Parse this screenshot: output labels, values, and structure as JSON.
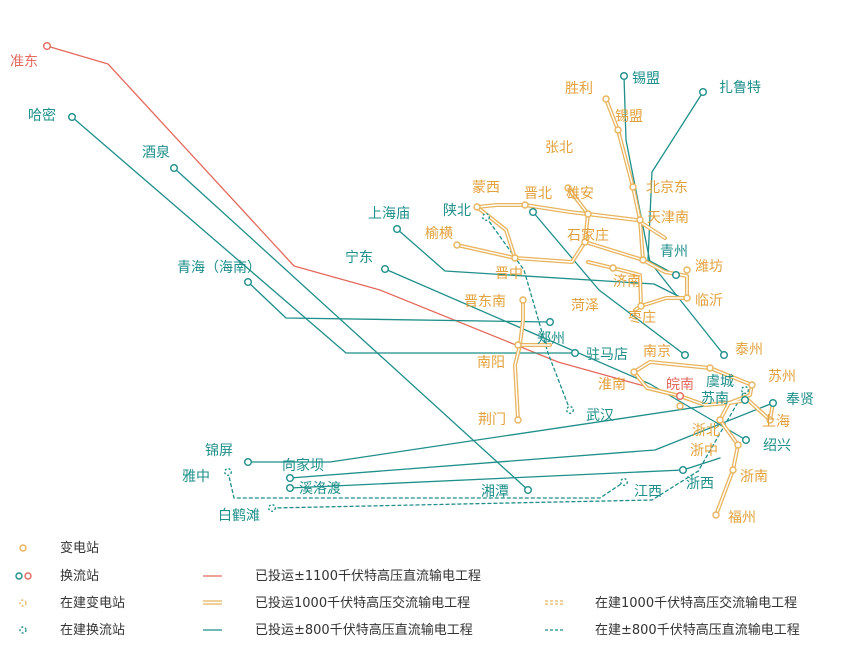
{
  "colors": {
    "teal": "#1f8f8a",
    "gold": "#e8b45e",
    "gold_label": "#e3a13d",
    "red": "#e46a5d",
    "text": "#333333"
  },
  "places": {
    "zhundong": "准东",
    "hami": "哈密",
    "jiuquan": "酒泉",
    "qinghai": "青海（海南）",
    "ningdong": "宁东",
    "shanghaimiao": "上海庙",
    "shanbei": "陕北",
    "mengxi": "蒙西",
    "jinbei": "晋北",
    "xiongan": "雄安",
    "zhangbei": "张北",
    "yuheng": "榆横",
    "shijiazhuang": "石家庄",
    "jinzhong": "晋中",
    "jindongnan": "晋东南",
    "zhengzhou": "郑州",
    "zhumadian": "驻马店",
    "nanyang": "南阳",
    "jingmen": "荆门",
    "wuhan": "武汉",
    "shengli": "胜利",
    "ximeng_dc": "锡盟",
    "ximeng_ac": "锡盟",
    "zhalute": "扎鲁特",
    "beijingdong": "北京东",
    "tianjinnan": "天津南",
    "qingzhou": "青州",
    "jinan": "济南",
    "weifang": "潍坊",
    "linyi": "临沂",
    "heze": "菏泽",
    "zaozhuang": "枣庄",
    "nanjing": "南京",
    "taizhou": "泰州",
    "huainan": "淮南",
    "wannan": "皖南",
    "yucheng": "虞城",
    "suzhou": "苏州",
    "sunan": "苏南",
    "fengxian": "奉贤",
    "shanghai": "上海",
    "zhebei": "浙北",
    "shaoxing": "绍兴",
    "zhezhong": "浙中",
    "zhenan": "浙南",
    "fuzhou": "福州",
    "zhexi": "浙西",
    "jiangxi": "江西",
    "xiangtan": "湘潭",
    "jinping": "锦屏",
    "xiangjiaba": "向家坝",
    "xiluodu": "溪洛渡",
    "yazhong": "雅中",
    "baihetan": "白鹤滩"
  },
  "legend": {
    "substation": "变电站",
    "converter": "换流站",
    "substation_construction": "在建变电站",
    "converter_construction": "在建换流站",
    "line_1100kv_dc": "已投运±1100千伏特高压直流输电工程",
    "line_1000kv_ac": "已投运1000千伏特高压交流输电工程",
    "line_800kv_dc": "已投运±800千伏特高压直流输电工程",
    "line_1000kv_ac_construction": "在建1000千伏特高压交流输电工程",
    "line_800kv_dc_construction": "在建±800千伏特高压直流输电工程"
  }
}
